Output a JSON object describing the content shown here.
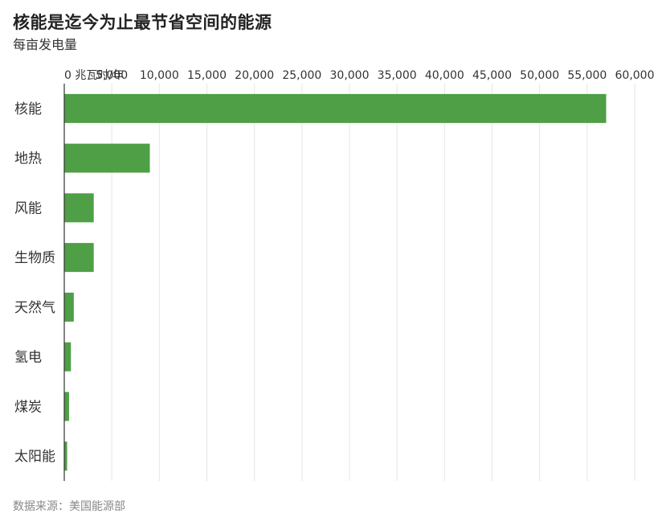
{
  "chart_title": "核能是迄今为止最节省空间的能源",
  "chart_subtitle": "每亩发电量",
  "source_note": "数据来源：美国能源部",
  "chart_data": {
    "type": "bar",
    "orientation": "horizontal",
    "title": "核能是迄今为止最节省空间的能源",
    "subtitle": "每亩发电量",
    "categories": [
      "核能",
      "地热",
      "风能",
      "生物质",
      "天然气",
      "氢电",
      "煤炭",
      "太阳能"
    ],
    "values": [
      57000,
      9000,
      3100,
      3100,
      1000,
      700,
      500,
      300
    ],
    "x_unit": "兆瓦时/年",
    "x_ticks": [
      0,
      5000,
      10000,
      15000,
      20000,
      25000,
      30000,
      35000,
      40000,
      45000,
      50000,
      55000,
      60000
    ],
    "x_tick_labels": [
      "0 兆瓦时/年",
      "5,000",
      "10,000",
      "15,000",
      "20,000",
      "25,000",
      "30,000",
      "35,000",
      "40,000",
      "45,000",
      "50,000",
      "55,000",
      "60,000"
    ],
    "xlim": [
      0,
      60000
    ],
    "grid": true,
    "axis_position": "top",
    "bar_color": "#4e9f45",
    "grid_color": "#e6e6e6",
    "axis_color": "#333333"
  }
}
